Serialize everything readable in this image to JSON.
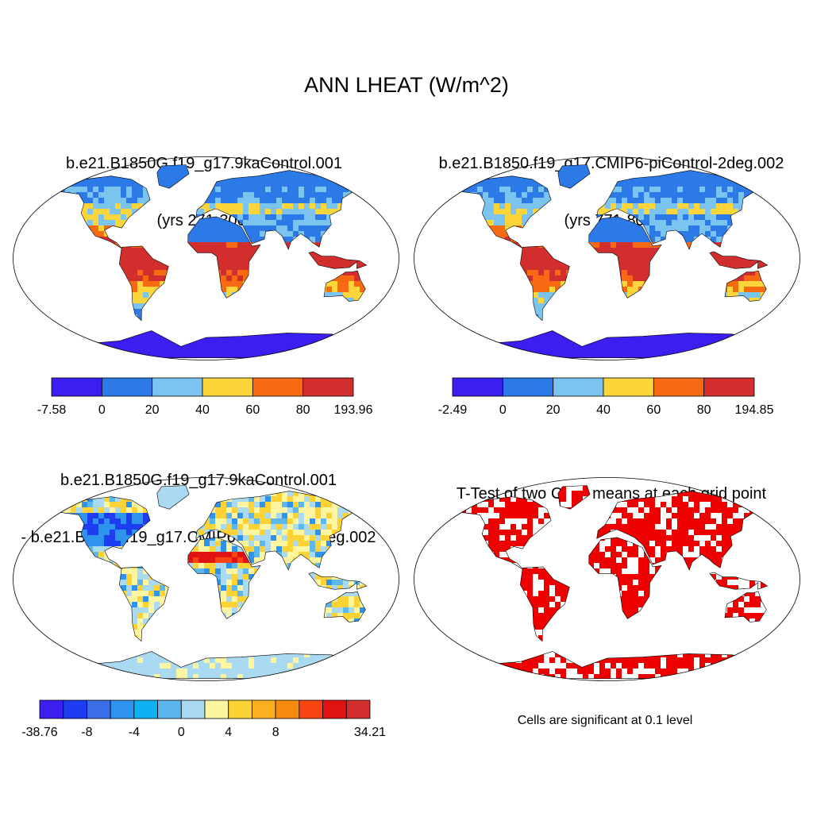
{
  "figure": {
    "title": "ANN LHEAT (W/m^2)"
  },
  "panels": [
    {
      "title_line1": "b.e21.B1850G.f19_g17.9kaControl.001",
      "title_line2": "(yrs 271-300)",
      "map_style": "field",
      "colorbar": {
        "colors": [
          "#3a1ff0",
          "#2c7ae8",
          "#7cc4f0",
          "#fcd53a",
          "#f86a12",
          "#d32e2e"
        ],
        "labels": [
          "-7.58",
          "0",
          "20",
          "40",
          "60",
          "80",
          "193.96"
        ]
      }
    },
    {
      "title_line1": "b.e21.B1850.f19_g17.CMIP6-piControl-2deg.002",
      "title_line2": "(yrs 771-800)",
      "map_style": "field",
      "colorbar": {
        "colors": [
          "#3a1ff0",
          "#2c7ae8",
          "#7cc4f0",
          "#fcd53a",
          "#f86a12",
          "#d32e2e"
        ],
        "labels": [
          "-2.49",
          "0",
          "20",
          "40",
          "60",
          "80",
          "194.85"
        ]
      }
    },
    {
      "title_line1": "b.e21.B1850G.f19_g17.9kaControl.001",
      "title_line2": "- b.e21.B1850.f19_g17.CMIP6-piControl-2deg.002",
      "map_style": "diff",
      "colorbar": {
        "colors": [
          "#3a1ff0",
          "#1e3cf0",
          "#3a6ee6",
          "#2e93ec",
          "#0eb2f0",
          "#5cb8ec",
          "#aad9f2",
          "#fef5a0",
          "#fdd235",
          "#fbb020",
          "#f88a0e",
          "#f74410",
          "#e01212",
          "#d32e2e"
        ],
        "labels": [
          "-38.76",
          "",
          "-8",
          "",
          "-4",
          "",
          "0",
          "",
          "4",
          "",
          "8",
          "",
          "",
          "",
          "34.21"
        ],
        "label_rule": "printed labels fall on every second boundary"
      }
    },
    {
      "title_line1": "T-Test of two Case means at each grid point",
      "title_line2": "",
      "map_style": "ttest",
      "significance_color": "#ee0000",
      "note": "Cells are significant at 0.1 level"
    }
  ]
}
